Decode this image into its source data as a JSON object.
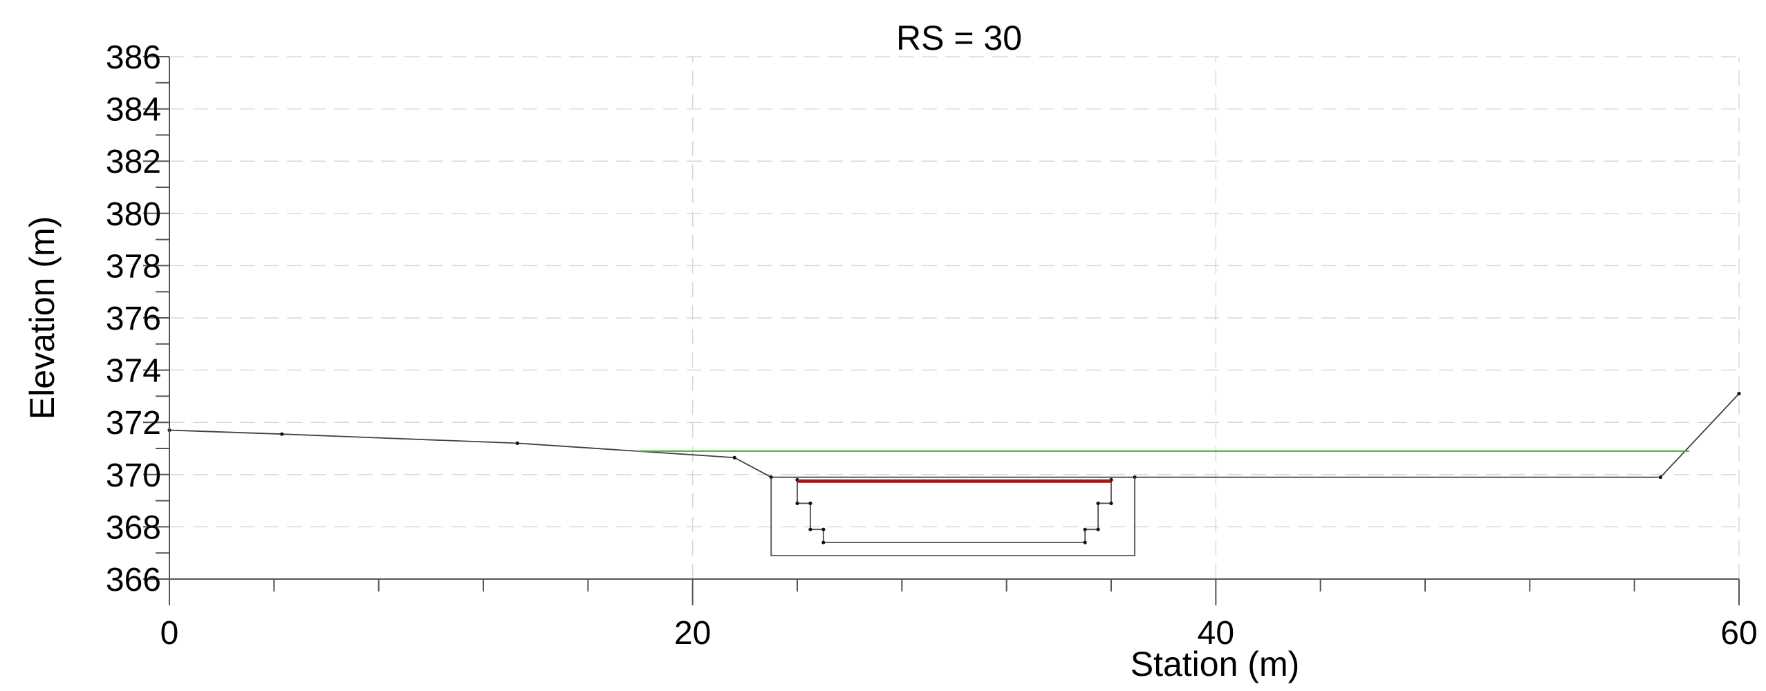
{
  "chart_data": {
    "type": "line",
    "title": "RS = 30",
    "xlabel": "Station (m)",
    "ylabel": "Elevation (m)",
    "xlim": [
      0,
      60
    ],
    "ylim": [
      366,
      386
    ],
    "x_ticks": [
      0,
      20,
      40,
      60
    ],
    "y_ticks": [
      366,
      368,
      370,
      372,
      374,
      376,
      378,
      380,
      382,
      384,
      386
    ],
    "grid": true,
    "colors": {
      "ground": "#404040",
      "water_surface": "#44b035",
      "culvert": "#505050",
      "culvert_top": "#a01818"
    },
    "series": [
      {
        "id": "ground",
        "points": [
          [
            0,
            371.7
          ],
          [
            4.3,
            371.55
          ],
          [
            13.3,
            371.2
          ],
          [
            21.6,
            370.65
          ],
          [
            23.0,
            369.9
          ],
          [
            36.9,
            369.9
          ],
          [
            57.0,
            369.9
          ],
          [
            60.0,
            373.1
          ]
        ]
      },
      {
        "id": "water_surface",
        "points": [
          [
            17.8,
            370.9
          ],
          [
            58.1,
            370.9
          ]
        ]
      },
      {
        "id": "culvert_outer",
        "points": [
          [
            23.0,
            369.9
          ],
          [
            23.0,
            366.9
          ],
          [
            36.9,
            366.9
          ],
          [
            36.9,
            369.9
          ]
        ]
      },
      {
        "id": "culvert_inner",
        "points": [
          [
            24.0,
            369.8
          ],
          [
            24.0,
            368.9
          ],
          [
            24.5,
            368.9
          ],
          [
            24.5,
            367.9
          ],
          [
            25.0,
            367.9
          ],
          [
            25.0,
            367.4
          ],
          [
            35.0,
            367.4
          ],
          [
            35.0,
            367.9
          ],
          [
            35.5,
            367.9
          ],
          [
            35.5,
            368.9
          ],
          [
            36.0,
            368.9
          ],
          [
            36.0,
            369.8
          ]
        ]
      },
      {
        "id": "culvert_top",
        "points": [
          [
            24.0,
            369.75
          ],
          [
            36.0,
            369.75
          ]
        ]
      }
    ]
  }
}
